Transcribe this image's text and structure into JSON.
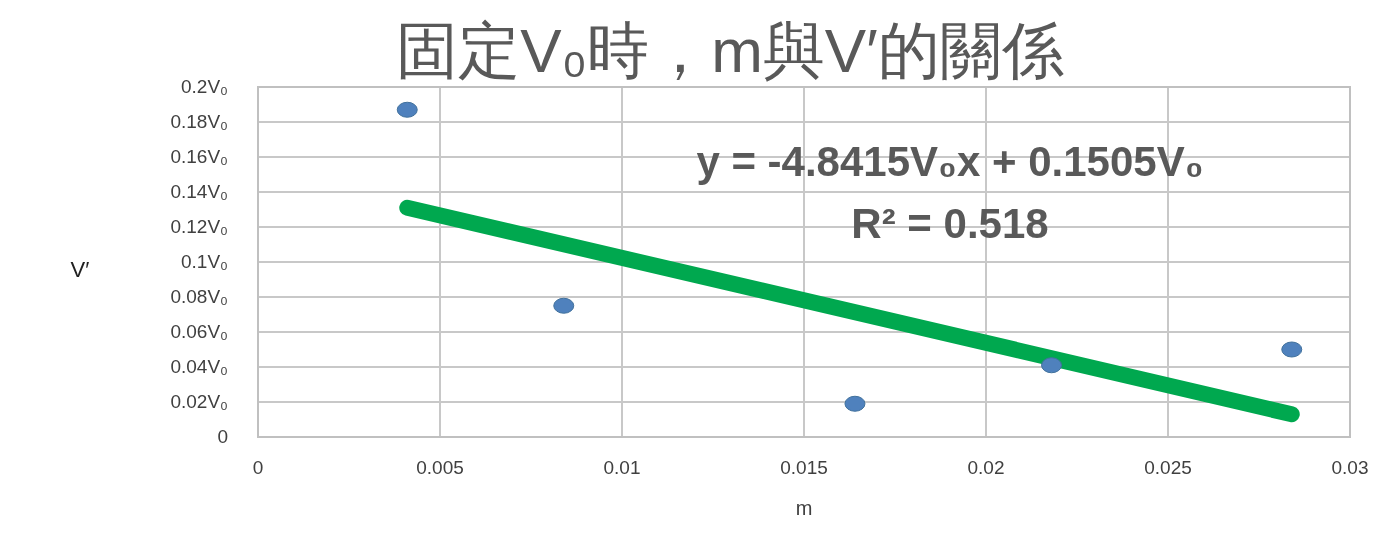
{
  "chart_data": {
    "type": "scatter",
    "title": "固定V₀時，m與V′的關係",
    "xlabel": "m",
    "ylabel": "V′",
    "xlim": [
      0,
      0.03
    ],
    "ylim": [
      0,
      0.2
    ],
    "xticks": [
      0,
      0.005,
      0.01,
      0.015,
      0.02,
      0.025,
      0.03
    ],
    "yticks": [
      0,
      {
        "value": 0.02,
        "label": "0.02V₀"
      },
      {
        "value": 0.04,
        "label": "0.04V₀"
      },
      {
        "value": 0.06,
        "label": "0.06V₀"
      },
      {
        "value": 0.08,
        "label": "0.08V₀"
      },
      {
        "value": 0.1,
        "label": "0.1V₀"
      },
      {
        "value": 0.12,
        "label": "0.12V₀"
      },
      {
        "value": 0.14,
        "label": "0.14V₀"
      },
      {
        "value": 0.16,
        "label": "0.16V₀"
      },
      {
        "value": 0.18,
        "label": "0.18V₀"
      },
      {
        "value": 0.2,
        "label": "0.2V₀"
      }
    ],
    "grid": true,
    "series": [
      {
        "type": "line",
        "color": "#00a84f",
        "x": [
          0.0041,
          0.0284
        ],
        "values": [
          0.131,
          0.013
        ],
        "marker": "none",
        "line_style": "solid"
      },
      {
        "color": "#4f81bd",
        "x": [
          0.0041,
          0.0084,
          0.0164,
          0.0218,
          0.0284
        ],
        "values": [
          0.187,
          0.075,
          0.019,
          0.041,
          0.05
        ],
        "marker": "circle"
      }
    ],
    "annotations": [
      "y = -4.8415V₀x + 0.1505V₀",
      "R² = 0.518"
    ]
  }
}
